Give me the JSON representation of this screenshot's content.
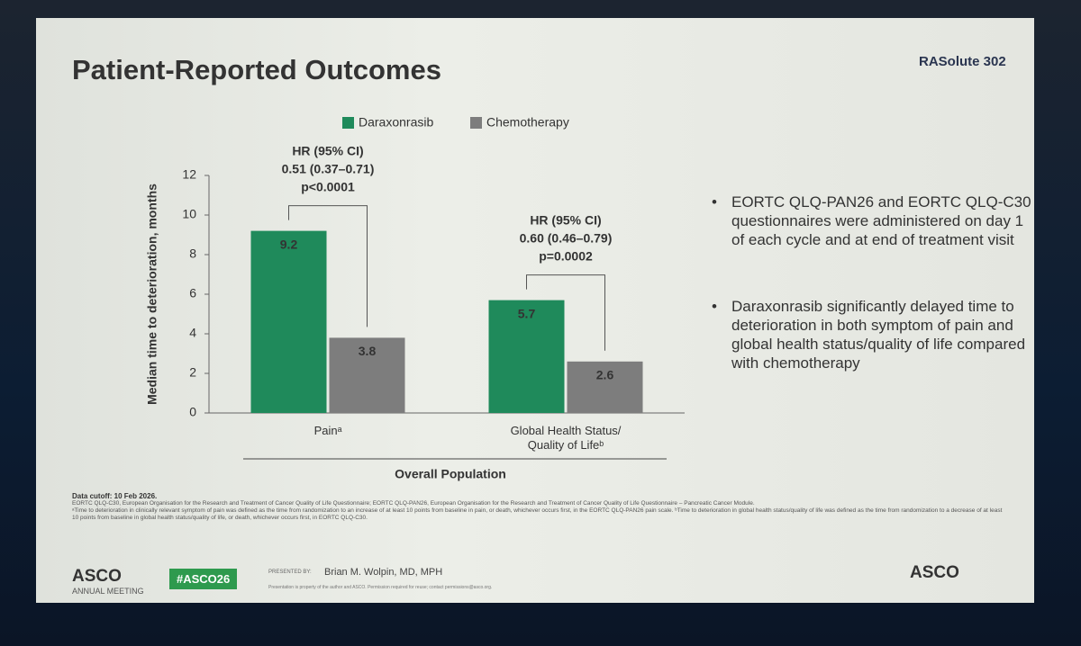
{
  "header": {
    "title": "Patient-Reported Outcomes",
    "logo": "RASolute 302"
  },
  "chart_data": {
    "type": "bar",
    "categories": [
      "Painᵃ",
      "Global Health Status/ Quality of Lifeᵇ"
    ],
    "series": [
      {
        "name": "Daraxonrasib",
        "color": "#1f8a5b",
        "values": [
          9.2,
          5.7
        ]
      },
      {
        "name": "Chemotherapy",
        "color": "#7d7d7d",
        "values": [
          3.8,
          2.6
        ]
      }
    ],
    "ylim": [
      0,
      12
    ],
    "yticks": [
      0,
      2,
      4,
      6,
      8,
      10,
      12
    ],
    "y_label": "Median time to deterioration, months",
    "x_label": "Overall Population",
    "legend": "top",
    "annotations": [
      {
        "lines": [
          "HR (95% CI)",
          "0.51 (0.37–0.71)",
          "p<0.0001"
        ]
      },
      {
        "lines": [
          "HR (95% CI)",
          "0.60 (0.46–0.79)",
          "p=0.0002"
        ]
      }
    ]
  },
  "bullets": [
    "EORTC QLQ-PAN26 and EORTC QLQ-C30 questionnaires were administered on day 1 of each cycle and at end of treatment visit",
    "Daraxonrasib significantly delayed time to deterioration in both symptom of pain and global health status/quality of life compared with chemotherapy"
  ],
  "footnotes": [
    "Data cutoff: 10 Feb 2026.",
    "EORTC QLQ-C30, European Organisation for the Research and Treatment of Cancer Quality of Life Questionnaire; EORTC QLQ-PAN26, European Organisation for the Research and Treatment of Cancer Quality of Life Questionnaire – Pancreatic Cancer Module.",
    "ᵃTime to deterioration in clinically relevant symptom of pain was defined as the time from randomization to an increase of at least 10 points from baseline in pain, or death, whichever occurs first, in the EORTC QLQ-PAN26 pain scale. ᵇTime to deterioration in global health status/quality of life was defined as the time from randomization to a decrease of at least 10 points from baseline in global health status/quality of life, or death, whichever occurs first, in EORTC QLQ-C30."
  ],
  "footer": {
    "meeting": "ASCO",
    "meeting_sub": "ANNUAL MEETING",
    "hashtag": "#ASCO26",
    "presented_by": "PRESENTED BY:",
    "presenter": "Brian M. Wolpin, MD, MPH",
    "notice": "Presentation is property of the author and ASCO. Permission required for reuse; contact permissions@asco.org.",
    "logo": "ASCO"
  }
}
